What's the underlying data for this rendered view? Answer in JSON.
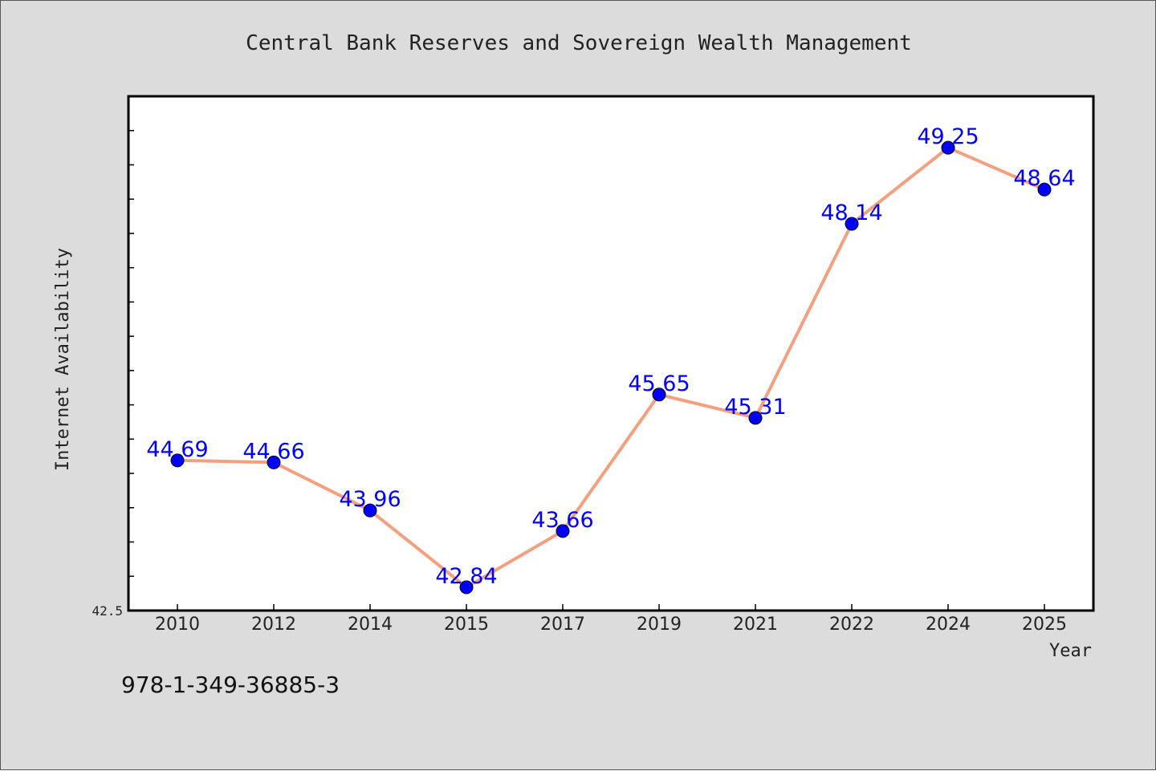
{
  "colors": {
    "background": "#dcdcdc",
    "plot_background": "#ffffff",
    "line": "#f4a07f",
    "marker": "#0000ff",
    "data_label": "#0000ff",
    "text": "#222222"
  },
  "footer_text": "978-1-349-36885-3",
  "chart_data": {
    "type": "line",
    "title": "Central Bank Reserves and Sovereign Wealth Management",
    "xlabel": "Year",
    "ylabel": "Internet Availability",
    "categories": [
      "2010",
      "2012",
      "2014",
      "2015",
      "2017",
      "2019",
      "2021",
      "2022",
      "2024",
      "2025"
    ],
    "series": [
      {
        "values": [
          44.69,
          44.66,
          43.96,
          42.84,
          43.66,
          45.65,
          45.31,
          48.14,
          49.25,
          48.64
        ]
      }
    ],
    "data_labels": [
      "44.69",
      "44.66",
      "43.96",
      "42.84",
      "43.66",
      "45.65",
      "45.31",
      "48.14",
      "49.25",
      "48.64"
    ],
    "ylim": [
      42.5,
      50.0
    ],
    "ytick_labels": [
      "42.5"
    ],
    "y_minor_step": 0.5,
    "grid": false,
    "legend": "none"
  }
}
